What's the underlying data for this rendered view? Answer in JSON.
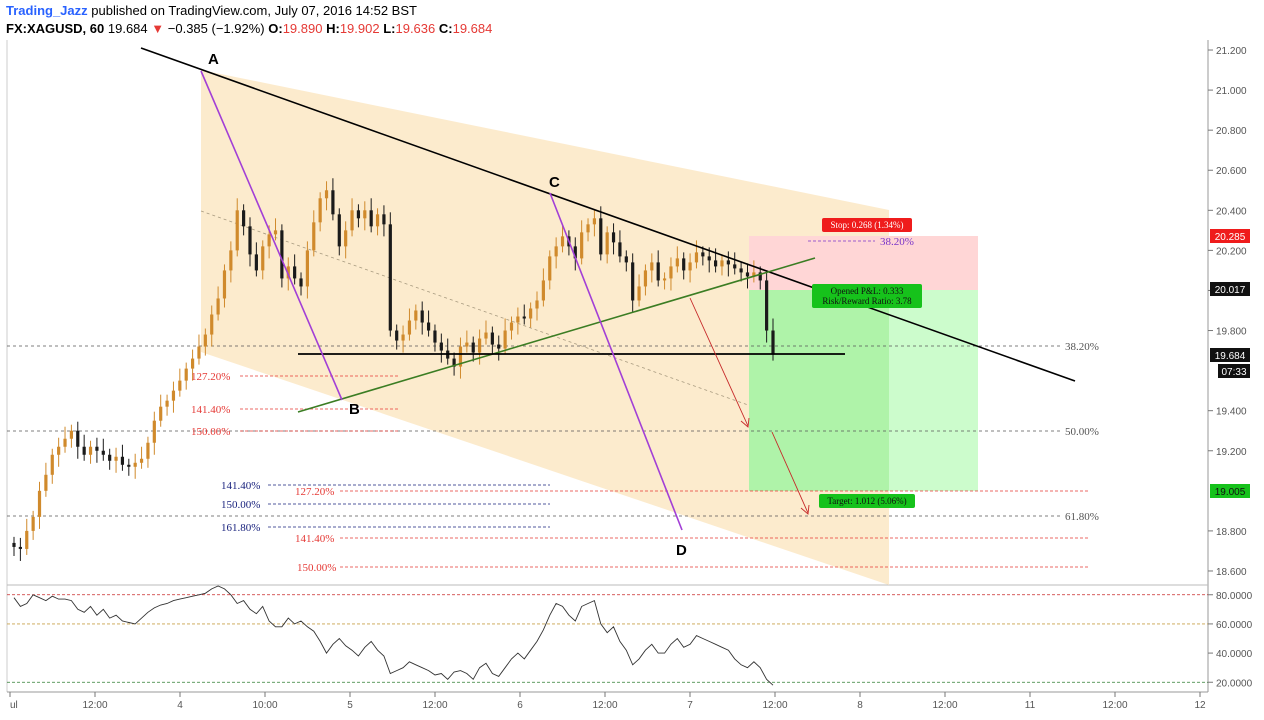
{
  "header": {
    "author": "Trading_Jazz",
    "published": "published on TradingView.com, July 07, 2016 14:52 BST",
    "symbol": "FX:XAGUSD, 60",
    "last": "19.684",
    "change": "−0.385 (−1.92%)",
    "o_label": "O:",
    "o": "19.890",
    "h_label": "H:",
    "h": "19.902",
    "l_label": "L:",
    "l": "19.636",
    "c_label": "C:",
    "c": "19.684"
  },
  "colors": {
    "up": "#d08a2c",
    "down": "#1a1a1a",
    "pattern_fill": "#fbe8c4",
    "stop_zone": "#ffd6d6",
    "target_zone": "#a8f0a0",
    "price_tag": "#111111",
    "stop_tag": "#ef1c1c",
    "target_tag": "#16c21b",
    "trend": "#000000",
    "xabcd_leg": "#a23fd6",
    "support": "#3b7d23"
  },
  "pattern_points": {
    "A": "A",
    "B": "B",
    "C": "C",
    "D": "D"
  },
  "annotations": {
    "stop": "Stop: 0.268 (1.34%)",
    "pnl": "Opened P&L: 0.333",
    "rr": "Risk/Reward Ratio: 3.78",
    "target": "Target: 1.012 (5.06%)"
  },
  "fib_labels": {
    "r1272": "127.20%",
    "r1414": "141.40%",
    "r150": "150.00%",
    "b1414": "141.40%",
    "b150": "150.00%",
    "b1618": "161.80%",
    "d1272": "127.20%",
    "d1414": "141.40%",
    "d150": "150.00%",
    "t382": "38.20%",
    "r382": "38.20%",
    "r50": "50.00%",
    "r618": "61.80%"
  },
  "price_tags": {
    "stop_price": "20.285",
    "entry_price": "20.017",
    "last_price": "19.684",
    "countdown": "07:33",
    "target_price": "19.005"
  },
  "chart_data": {
    "type": "candlestick",
    "y_ticks": [
      "21.200",
      "21.000",
      "20.800",
      "20.600",
      "20.400",
      "20.200",
      "20.000",
      "19.800",
      "19.400",
      "19.200",
      "18.800",
      "18.600"
    ],
    "x_ticks": [
      "ul",
      "12:00",
      "4",
      "10:00",
      "5",
      "12:00",
      "6",
      "12:00",
      "7",
      "12:00",
      "8",
      "12:00",
      "11",
      "12:00",
      "12"
    ],
    "ylim": [
      18.53,
      21.25
    ],
    "closes": [
      18.72,
      18.71,
      18.8,
      18.87,
      19.0,
      19.08,
      19.18,
      19.22,
      19.26,
      19.3,
      19.22,
      19.18,
      19.22,
      19.2,
      19.18,
      19.15,
      19.17,
      19.13,
      19.12,
      19.14,
      19.16,
      19.24,
      19.35,
      19.42,
      19.45,
      19.5,
      19.55,
      19.61,
      19.66,
      19.72,
      19.78,
      19.88,
      19.96,
      20.1,
      20.2,
      20.4,
      20.32,
      20.18,
      20.1,
      20.22,
      20.28,
      20.3,
      20.06,
      20.12,
      20.06,
      20.02,
      20.2,
      20.34,
      20.46,
      20.5,
      20.38,
      20.22,
      20.3,
      20.4,
      20.36,
      20.4,
      20.32,
      20.38,
      20.33,
      19.8,
      19.75,
      19.78,
      19.85,
      19.9,
      19.84,
      19.8,
      19.74,
      19.7,
      19.66,
      19.62,
      19.72,
      19.74,
      19.69,
      19.76,
      19.79,
      19.73,
      19.71,
      19.8,
      19.84,
      19.87,
      19.86,
      19.91,
      19.95,
      20.05,
      20.17,
      20.22,
      20.27,
      20.22,
      20.16,
      20.29,
      20.33,
      20.36,
      20.18,
      20.29,
      20.24,
      20.17,
      20.14,
      19.95,
      20.02,
      20.1,
      20.14,
      20.05,
      20.06,
      20.12,
      20.16,
      20.1,
      20.14,
      20.19,
      20.17,
      20.15,
      20.12,
      20.15,
      20.13,
      20.11,
      20.09,
      20.07,
      20.09,
      20.05,
      19.8,
      19.68
    ],
    "rsi_levels": [
      "80.0000",
      "60.0000",
      "40.0000",
      "20.0000"
    ],
    "rsi_ylim": [
      14,
      86
    ],
    "rsi": [
      78,
      72,
      74,
      80,
      78,
      76,
      79,
      77,
      77,
      76,
      70,
      68,
      72,
      66,
      70,
      64,
      66,
      62,
      61,
      60,
      64,
      68,
      71,
      73,
      74,
      76,
      77,
      78,
      79,
      80,
      81,
      84,
      86,
      84,
      80,
      74,
      76,
      70,
      67,
      72,
      62,
      58,
      58,
      64,
      60,
      62,
      58,
      55,
      48,
      40,
      46,
      50,
      45,
      42,
      38,
      44,
      48,
      42,
      38,
      26,
      28,
      30,
      34,
      32,
      30,
      28,
      25,
      26,
      22,
      27,
      28,
      26,
      22,
      30,
      33,
      26,
      24,
      30,
      36,
      40,
      36,
      42,
      48,
      56,
      66,
      74,
      72,
      66,
      62,
      72,
      74,
      76,
      60,
      54,
      58,
      48,
      42,
      32,
      36,
      42,
      46,
      40,
      40,
      46,
      50,
      44,
      46,
      52,
      50,
      48,
      46,
      44,
      42,
      36,
      32,
      30,
      34,
      30,
      22,
      18
    ]
  }
}
